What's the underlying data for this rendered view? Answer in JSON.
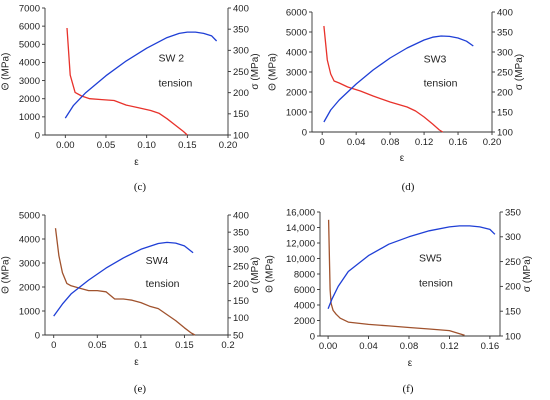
{
  "chart_data": [
    {
      "type": "line",
      "caption": "(c)",
      "annotations": [
        "SW 2",
        "tension"
      ],
      "xlabel": "ε",
      "ylabel_left": "Θ (MPa)",
      "ylabel_right": "σ (MPa)",
      "xlim": [
        -0.025,
        0.2
      ],
      "ylim_left": [
        0,
        7000
      ],
      "ylim_right": [
        100,
        400
      ],
      "xticks": [
        "0.00",
        "0.05",
        "0.10",
        "0.15",
        "0.20"
      ],
      "xtick_values": [
        0,
        0.05,
        0.1,
        0.15,
        0.2
      ],
      "yticks_left": [
        "0",
        "1000",
        "2000",
        "3000",
        "4000",
        "5000",
        "6000",
        "7000"
      ],
      "ytick_values_left": [
        0,
        1000,
        2000,
        3000,
        4000,
        5000,
        6000,
        7000
      ],
      "yticks_right": [
        "100",
        "150",
        "200",
        "250",
        "300",
        "350",
        "400"
      ],
      "ytick_values_right": [
        100,
        150,
        200,
        250,
        300,
        350,
        400
      ],
      "series": [
        {
          "axis": "left",
          "color": "#e8322b",
          "x": [
            0.002,
            0.006,
            0.012,
            0.02,
            0.03,
            0.045,
            0.06,
            0.075,
            0.09,
            0.105,
            0.115,
            0.125,
            0.135,
            0.145,
            0.15
          ],
          "y": [
            5900,
            3300,
            2350,
            2150,
            2000,
            1950,
            1900,
            1650,
            1500,
            1350,
            1200,
            900,
            550,
            200,
            0
          ]
        },
        {
          "axis": "right",
          "color": "#1f3fd6",
          "x": [
            0.0,
            0.01,
            0.025,
            0.05,
            0.075,
            0.1,
            0.125,
            0.14,
            0.15,
            0.16,
            0.17,
            0.18,
            0.186
          ],
          "y": [
            140,
            170,
            200,
            240,
            275,
            305,
            330,
            340,
            343,
            343,
            340,
            334,
            322
          ]
        }
      ]
    },
    {
      "type": "line",
      "caption": "(d)",
      "annotations": [
        "SW3",
        "tension"
      ],
      "xlabel": "ε",
      "ylabel_left": "Θ (MPa)",
      "ylabel_right": "σ (MPa)",
      "xlim": [
        -0.012,
        0.2
      ],
      "ylim_left": [
        0,
        6000
      ],
      "ylim_right": [
        100,
        400
      ],
      "xticks": [
        "0",
        "0.04",
        "0.08",
        "0.12",
        "0.16",
        "0.20"
      ],
      "xtick_values": [
        0,
        0.04,
        0.08,
        0.12,
        0.16,
        0.2
      ],
      "yticks_left": [
        "0",
        "1000",
        "2000",
        "3000",
        "4000",
        "5000",
        "6000"
      ],
      "ytick_values_left": [
        0,
        1000,
        2000,
        3000,
        4000,
        5000,
        6000
      ],
      "yticks_right": [
        "100",
        "150",
        "200",
        "250",
        "300",
        "350",
        "400"
      ],
      "ytick_values_right": [
        100,
        150,
        200,
        250,
        300,
        350,
        400
      ],
      "series": [
        {
          "axis": "left",
          "color": "#e8322b",
          "x": [
            0.002,
            0.006,
            0.01,
            0.014,
            0.02,
            0.03,
            0.045,
            0.06,
            0.08,
            0.1,
            0.11,
            0.12,
            0.13,
            0.138,
            0.142
          ],
          "y": [
            5300,
            3600,
            2900,
            2550,
            2450,
            2250,
            2050,
            1800,
            1500,
            1250,
            1050,
            750,
            400,
            100,
            0
          ]
        },
        {
          "axis": "right",
          "color": "#1f3fd6",
          "x": [
            0.002,
            0.01,
            0.02,
            0.04,
            0.06,
            0.08,
            0.1,
            0.12,
            0.13,
            0.14,
            0.15,
            0.16,
            0.17,
            0.178
          ],
          "y": [
            125,
            155,
            180,
            220,
            255,
            285,
            310,
            330,
            337,
            340,
            339,
            335,
            327,
            315
          ]
        }
      ]
    },
    {
      "type": "line",
      "caption": "(e)",
      "annotations": [
        "SW4",
        "tension"
      ],
      "xlabel": "ε",
      "ylabel_left": "Θ (MPa)",
      "ylabel_right": "σ (MPa)",
      "xlim": [
        -0.01,
        0.2
      ],
      "ylim_left": [
        0,
        5000
      ],
      "ylim_right": [
        50,
        400
      ],
      "xticks": [
        "0",
        "0.05",
        "0.1",
        "0.15",
        "0.2"
      ],
      "xtick_values": [
        0,
        0.05,
        0.1,
        0.15,
        0.2
      ],
      "yticks_left": [
        "0",
        "1000",
        "2000",
        "3000",
        "4000",
        "5000"
      ],
      "ytick_values_left": [
        0,
        1000,
        2000,
        3000,
        4000,
        5000
      ],
      "yticks_right": [
        "50",
        "100",
        "150",
        "200",
        "250",
        "300",
        "350",
        "400"
      ],
      "ytick_values_right": [
        50,
        100,
        150,
        200,
        250,
        300,
        350,
        400
      ],
      "series": [
        {
          "axis": "left",
          "color": "#a0522d",
          "x": [
            0.002,
            0.006,
            0.01,
            0.015,
            0.02,
            0.03,
            0.04,
            0.05,
            0.06,
            0.07,
            0.08,
            0.09,
            0.1,
            0.11,
            0.12,
            0.13,
            0.14,
            0.15,
            0.158,
            0.162
          ],
          "y": [
            4450,
            3300,
            2600,
            2150,
            2050,
            1950,
            1850,
            1850,
            1800,
            1500,
            1500,
            1450,
            1350,
            1200,
            1100,
            850,
            600,
            300,
            80,
            0
          ]
        },
        {
          "axis": "right",
          "color": "#1f3fd6",
          "x": [
            0.0,
            0.01,
            0.02,
            0.04,
            0.06,
            0.08,
            0.1,
            0.12,
            0.13,
            0.14,
            0.15,
            0.16
          ],
          "y": [
            105,
            140,
            170,
            210,
            245,
            275,
            300,
            317,
            320,
            318,
            310,
            290
          ]
        }
      ]
    },
    {
      "type": "line",
      "caption": "(f)",
      "annotations": [
        "SW5",
        "tension"
      ],
      "xlabel": "ε",
      "ylabel_left": "Θ (MPa)",
      "ylabel_right": "σ (MPa)",
      "xlim": [
        -0.008,
        0.17
      ],
      "ylim_left": [
        0,
        16000
      ],
      "ylim_right": [
        100,
        350
      ],
      "xticks": [
        "0.00",
        "0.04",
        "0.08",
        "0.12",
        "0.16"
      ],
      "xtick_values": [
        0,
        0.04,
        0.08,
        0.12,
        0.16
      ],
      "yticks_left": [
        "0",
        "2000",
        "4000",
        "6000",
        "8000",
        "10,000",
        "12,000",
        "14,000",
        "16,000"
      ],
      "ytick_values_left": [
        0,
        2000,
        4000,
        6000,
        8000,
        10000,
        12000,
        14000,
        16000
      ],
      "yticks_right": [
        "100",
        "150",
        "200",
        "250",
        "300",
        "350"
      ],
      "ytick_values_right": [
        100,
        150,
        200,
        250,
        300,
        350
      ],
      "series": [
        {
          "axis": "left",
          "color": "#a0522d",
          "x": [
            0.0005,
            0.001,
            0.0015,
            0.002,
            0.003,
            0.005,
            0.008,
            0.012,
            0.02,
            0.04,
            0.06,
            0.08,
            0.1,
            0.12,
            0.13,
            0.135
          ],
          "y": [
            15000,
            12000,
            9000,
            6000,
            4200,
            3300,
            2800,
            2300,
            1800,
            1500,
            1300,
            1100,
            900,
            700,
            300,
            100
          ]
        },
        {
          "axis": "right",
          "color": "#1f3fd6",
          "x": [
            0.0,
            0.004,
            0.01,
            0.02,
            0.04,
            0.06,
            0.08,
            0.1,
            0.12,
            0.13,
            0.14,
            0.15,
            0.16,
            0.165
          ],
          "y": [
            155,
            175,
            200,
            230,
            262,
            285,
            300,
            312,
            320,
            322,
            322,
            320,
            315,
            305
          ]
        }
      ]
    }
  ]
}
